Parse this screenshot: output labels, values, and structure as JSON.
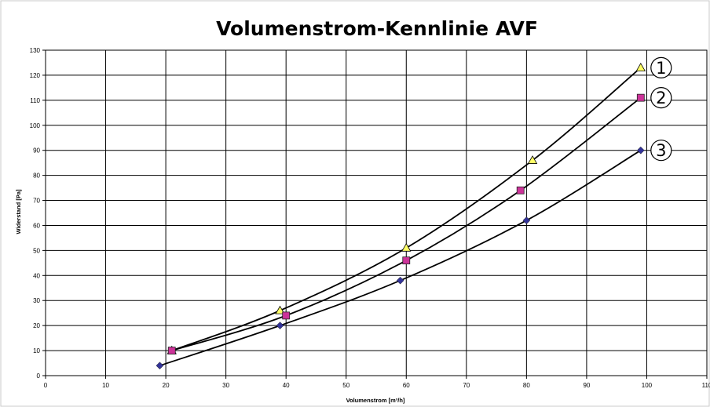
{
  "chart_data": {
    "type": "line",
    "title": "Volumenstrom-Kennlinie AVF",
    "xlabel": "Volumenstrom    [m³/h]",
    "ylabel": "Widerstand    [Pa]",
    "xlim": [
      0,
      110
    ],
    "ylim": [
      0,
      130
    ],
    "x_ticks": [
      "0",
      "10",
      "20",
      "30",
      "40",
      "50",
      "60",
      "70",
      "80",
      "90",
      "100",
      "110"
    ],
    "y_ticks": [
      "0",
      "10",
      "20",
      "30",
      "40",
      "50",
      "60",
      "70",
      "80",
      "90",
      "100",
      "110",
      "120",
      "130"
    ],
    "grid": true,
    "legend": "none",
    "series": [
      {
        "label": "1",
        "marker": "triangle",
        "color": "#ffff66",
        "x": [
          21,
          39,
          60,
          81,
          99
        ],
        "y": [
          10,
          26,
          51,
          86,
          123
        ]
      },
      {
        "label": "2",
        "marker": "square",
        "color": "#cc3399",
        "x": [
          21,
          40,
          60,
          79,
          99
        ],
        "y": [
          10,
          24,
          46,
          74,
          111
        ]
      },
      {
        "label": "3",
        "marker": "diamond",
        "color": "#333399",
        "x": [
          19,
          39,
          59,
          80,
          99
        ],
        "y": [
          4,
          20,
          38,
          62,
          90
        ]
      }
    ]
  }
}
